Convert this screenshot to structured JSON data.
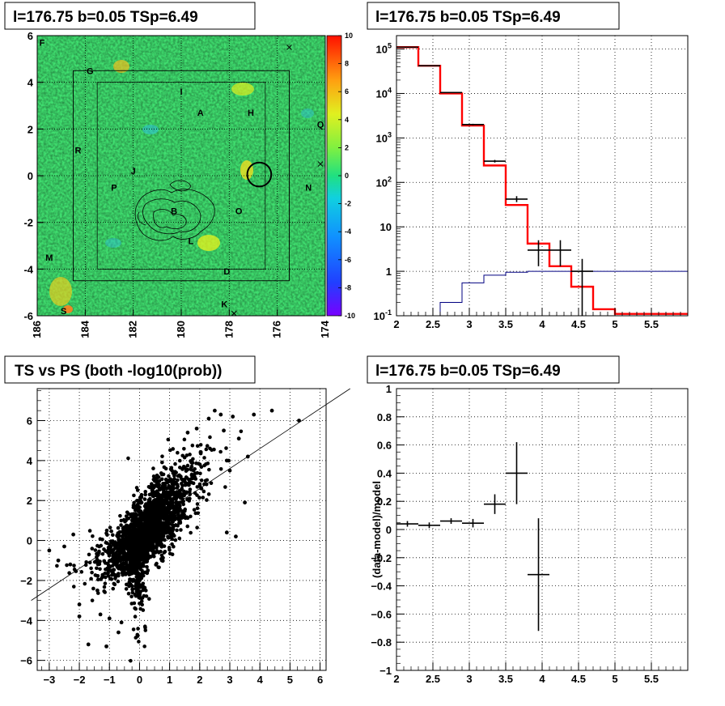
{
  "panels": {
    "top_left_title": "l=176.75 b=0.05 TSp=6.49",
    "top_right_title": "l=176.75 b=0.05 TSp=6.49",
    "bottom_left_title": "TS vs PS (both -log10(prob))",
    "bottom_right_title": "l=176.75 b=0.05 TSp=6.49"
  },
  "chart_data": [
    {
      "type": "heatmap",
      "title": "l=176.75 b=0.05 TSp=6.49",
      "x_ticks": [
        "186",
        "184",
        "182",
        "180",
        "178",
        "176",
        "174"
      ],
      "y_ticks": [
        "6",
        "4",
        "2",
        "0",
        "-2",
        "-4",
        "-6"
      ],
      "xlim": [
        186,
        174
      ],
      "ylim": [
        -6,
        6
      ],
      "colorbar_ticks": [
        "10",
        "8",
        "6",
        "4",
        "2",
        "0",
        "-2",
        "-4",
        "-6",
        "-8",
        "-10"
      ],
      "colorbar_range": [
        -10,
        10
      ],
      "source_labels": [
        {
          "label": "F",
          "l": 185.8,
          "b": 5.7
        },
        {
          "label": "G",
          "l": 183.8,
          "b": 4.5
        },
        {
          "label": "I",
          "l": 180.0,
          "b": 3.6
        },
        {
          "label": "A",
          "l": 179.2,
          "b": 2.7
        },
        {
          "label": "H",
          "l": 177.1,
          "b": 2.7
        },
        {
          "label": "Q",
          "l": 174.2,
          "b": 2.2
        },
        {
          "label": "R",
          "l": 184.3,
          "b": 1.1
        },
        {
          "label": "J",
          "l": 182.0,
          "b": 0.2
        },
        {
          "label": "P",
          "l": 182.8,
          "b": -0.5
        },
        {
          "label": "N",
          "l": 174.7,
          "b": -0.5
        },
        {
          "label": "B",
          "l": 180.3,
          "b": -1.5
        },
        {
          "label": "O",
          "l": 177.6,
          "b": -1.5
        },
        {
          "label": "L",
          "l": 179.6,
          "b": -2.8
        },
        {
          "label": "M",
          "l": 185.5,
          "b": -3.5
        },
        {
          "label": "D",
          "l": 178.1,
          "b": -4.1
        },
        {
          "label": "K",
          "l": 178.2,
          "b": -5.5
        },
        {
          "label": "S",
          "l": 184.9,
          "b": -5.8
        }
      ],
      "cross_markers": [
        {
          "l": 175.5,
          "b": 5.5
        },
        {
          "l": 174.2,
          "b": 0.5
        },
        {
          "l": 177.8,
          "b": -5.9
        }
      ],
      "circle": {
        "l": 176.75,
        "b": 0.05,
        "radius": 0.5
      },
      "boxes": [
        {
          "l_range": [
            184.5,
            175.5
          ],
          "b_range": [
            -4.5,
            4.5
          ]
        },
        {
          "l_range": [
            183.5,
            176.5
          ],
          "b_range": [
            -4.0,
            4.0
          ]
        }
      ],
      "grid": true
    },
    {
      "type": "line",
      "title": "l=176.75 b=0.05 TSp=6.49",
      "x_ticks": [
        "2",
        "2.5",
        "3",
        "3.5",
        "4",
        "4.5",
        "5",
        "5.5"
      ],
      "y_ticks": [
        "10^5",
        "10^4",
        "10^3",
        "10^2",
        "10",
        "1",
        "10^-1"
      ],
      "xlim": [
        2,
        6
      ],
      "ylim": [
        0.1,
        200000
      ],
      "ylog": true,
      "grid": true,
      "series": [
        {
          "color": "#ff0000",
          "style": "step",
          "edges": [
            2.0,
            2.3,
            2.6,
            2.9,
            3.2,
            3.5,
            3.8,
            4.1,
            4.4,
            4.7,
            5.0,
            5.3,
            6.0
          ],
          "values": [
            110000,
            42000,
            10000,
            1900,
            240,
            31,
            4.2,
            1.3,
            0.45,
            0.14,
            0.11,
            0.11
          ]
        },
        {
          "color": "#000080",
          "style": "step",
          "edges": [
            2.0,
            2.3,
            2.6,
            2.9,
            3.2,
            3.5,
            3.8,
            6.0
          ],
          "values": [
            0.04,
            0.08,
            0.2,
            0.55,
            0.82,
            0.95,
            1.0
          ]
        },
        {
          "color": "#000000",
          "style": "errorbars",
          "points": [
            {
              "x": 2.15,
              "y": 110000,
              "xerr": 0.15,
              "ylo": 109000,
              "yhi": 111000
            },
            {
              "x": 2.45,
              "y": 42000,
              "xerr": 0.15,
              "ylo": 41500,
              "yhi": 42500
            },
            {
              "x": 2.75,
              "y": 10500,
              "xerr": 0.15,
              "ylo": 10300,
              "yhi": 10700
            },
            {
              "x": 3.05,
              "y": 2000,
              "xerr": 0.15,
              "ylo": 1920,
              "yhi": 2080
            },
            {
              "x": 3.35,
              "y": 300,
              "xerr": 0.15,
              "ylo": 280,
              "yhi": 320
            },
            {
              "x": 3.65,
              "y": 42,
              "xerr": 0.15,
              "ylo": 36,
              "yhi": 49
            },
            {
              "x": 3.95,
              "y": 3,
              "xerr": 0.15,
              "ylo": 1.3,
              "yhi": 5
            },
            {
              "x": 4.25,
              "y": 3,
              "xerr": 0.15,
              "ylo": 1.3,
              "yhi": 5
            },
            {
              "x": 4.55,
              "y": 1,
              "xerr": 0.15,
              "ylo": 0.1,
              "yhi": 1.9
            }
          ]
        }
      ]
    },
    {
      "type": "scatter",
      "title": "TS vs PS (both -log10(prob))",
      "x_ticks": [
        "-3",
        "-2",
        "-1",
        "0",
        "1",
        "2",
        "3",
        "4",
        "5",
        "6"
      ],
      "y_ticks": [
        "6",
        "4",
        "2",
        "0",
        "-2",
        "-4",
        "-6"
      ],
      "xlim": [
        -3.4,
        6.2
      ],
      "ylim": [
        -6.5,
        7.6
      ],
      "grid": true,
      "line": {
        "slope": 1.0,
        "intercept": 0.6
      },
      "outliers": [
        [
          5.3,
          6.0
        ],
        [
          4.4,
          6.5
        ],
        [
          3.8,
          6.3
        ],
        [
          3.1,
          6.2
        ],
        [
          2.7,
          6.3
        ],
        [
          2.5,
          6.5
        ],
        [
          3.3,
          5.1
        ],
        [
          2.8,
          5.5
        ],
        [
          3.6,
          4.2
        ],
        [
          2.9,
          4.0
        ],
        [
          3.0,
          3.5
        ],
        [
          3.2,
          0.2
        ],
        [
          2.9,
          0.4
        ],
        [
          3.5,
          1.9
        ],
        [
          -3.0,
          -0.5
        ],
        [
          -2.7,
          -1.0
        ],
        [
          -2.2,
          0.3
        ],
        [
          -2.5,
          -0.3
        ],
        [
          -2.0,
          -3.2
        ],
        [
          -2.0,
          -3.8
        ],
        [
          -1.7,
          -5.2
        ],
        [
          -1.1,
          -5.3
        ],
        [
          -0.7,
          -4.6
        ],
        [
          -1.3,
          -3.7
        ],
        [
          -0.6,
          -4.1
        ],
        [
          -1.0,
          -3.9
        ],
        [
          -1.4,
          -2.5
        ],
        [
          -2.3,
          -1.2
        ],
        [
          1.9,
          5.6
        ],
        [
          2.3,
          6.1
        ],
        [
          1.6,
          5.4
        ]
      ]
    },
    {
      "type": "scatter",
      "title": "l=176.75 b=0.05 TSp=6.49",
      "ylabel": "(data-model)/model",
      "x_ticks": [
        "2",
        "2.5",
        "3",
        "3.5",
        "4",
        "4.5",
        "5",
        "5.5"
      ],
      "y_ticks": [
        "1",
        "0.8",
        "0.6",
        "0.4",
        "0.2",
        "0",
        "-0.2",
        "-0.4",
        "-0.6",
        "-0.8",
        "-1"
      ],
      "xlim": [
        2,
        6
      ],
      "ylim": [
        -1,
        1
      ],
      "grid": true,
      "points": [
        {
          "x": 2.15,
          "y": 0.04,
          "xerr": 0.15,
          "yerr": 0.02
        },
        {
          "x": 2.45,
          "y": 0.03,
          "xerr": 0.15,
          "yerr": 0.02
        },
        {
          "x": 2.75,
          "y": 0.06,
          "xerr": 0.15,
          "yerr": 0.02
        },
        {
          "x": 3.05,
          "y": 0.045,
          "xerr": 0.15,
          "yerr": 0.03
        },
        {
          "x": 3.35,
          "y": 0.18,
          "xerr": 0.15,
          "yerr": 0.07
        },
        {
          "x": 3.65,
          "y": 0.4,
          "xerr": 0.15,
          "yerr": 0.22
        },
        {
          "x": 3.95,
          "y": -0.32,
          "xerr": 0.15,
          "yerr": 0.4
        }
      ]
    }
  ]
}
